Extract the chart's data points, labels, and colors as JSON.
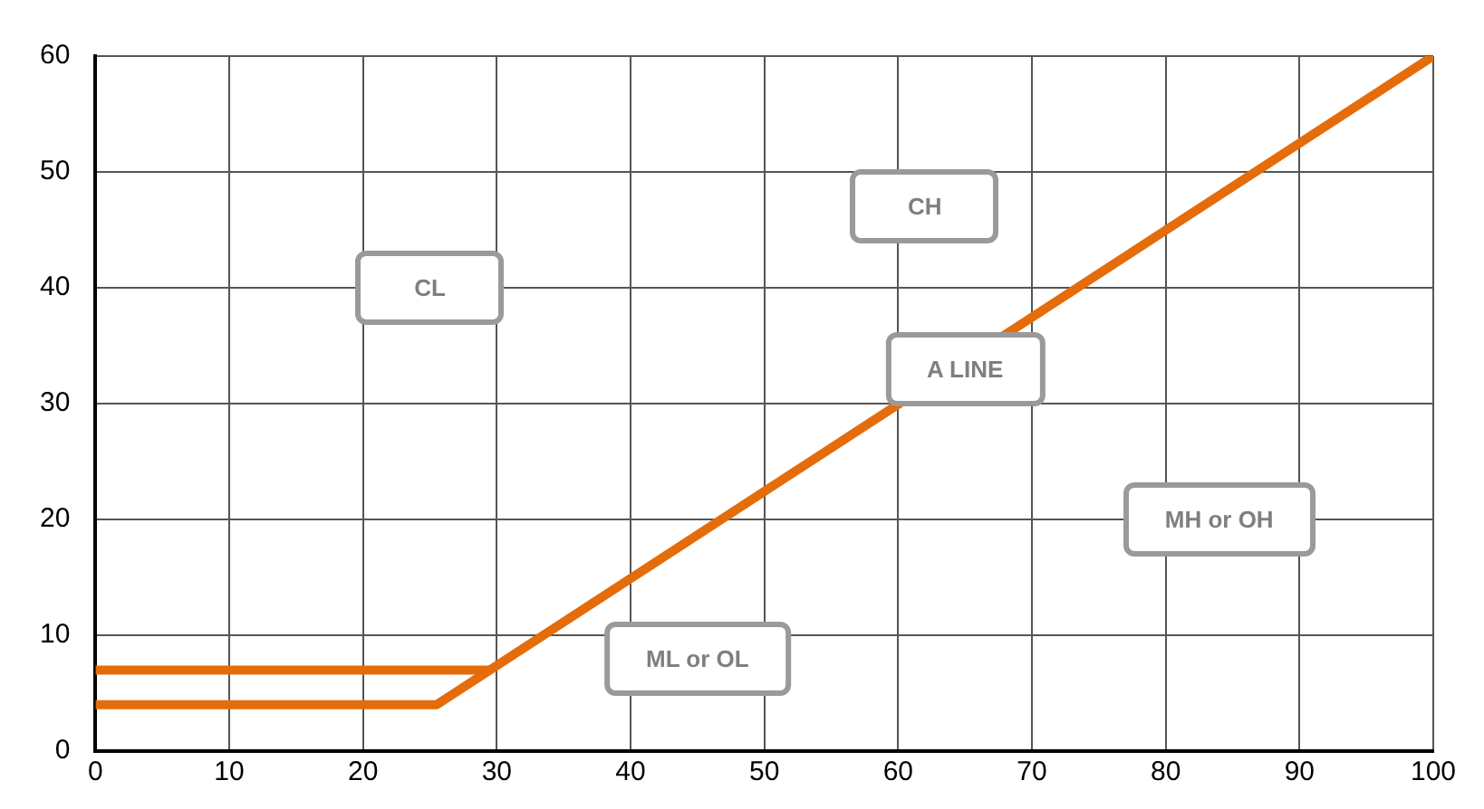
{
  "chart_data": {
    "type": "line",
    "x": [
      0,
      25.5,
      100
    ],
    "series": [
      {
        "color": "#e46c0a",
        "values": [
          4,
          4,
          60
        ]
      },
      {
        "color": "#e46c0a",
        "x": [
          0,
          29.5
        ],
        "values": [
          7,
          7
        ]
      }
    ],
    "xlim": [
      0,
      100
    ],
    "ylim": [
      0,
      60
    ],
    "xticks": [
      0,
      10,
      20,
      30,
      40,
      50,
      60,
      70,
      80,
      90,
      100
    ],
    "yticks": [
      0,
      10,
      20,
      30,
      40,
      50,
      60
    ],
    "grid": true,
    "legend": false,
    "marker": "none",
    "line_style": "solid",
    "annotations": [
      "CL",
      "CH",
      {
        "text": "A LINE",
        "x": 65,
        "y": 33
      },
      "MH or OH",
      "ML or OL"
    ]
  }
}
